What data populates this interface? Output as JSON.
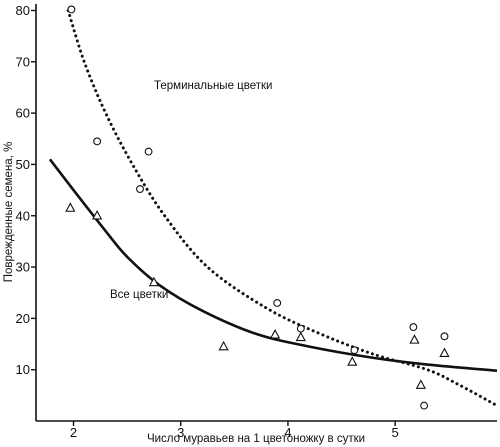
{
  "chart_data": {
    "type": "scatter",
    "xlabel": "Число муравьев на 1 цветоножку в сутки",
    "ylabel": "Поврежденные семена, %",
    "xlim": [
      1.65,
      5.95
    ],
    "ylim": [
      0,
      80
    ],
    "x_ticks": [
      "2",
      "3",
      "4",
      "5"
    ],
    "y_ticks": [
      "10",
      "20",
      "30",
      "40",
      "50",
      "60",
      "70",
      "80"
    ],
    "grid": false,
    "legend": "none",
    "colors": {
      "ink": "#111111",
      "background": "#ffffff"
    },
    "series": [
      {
        "name": "Терминальные цветки",
        "marker": "circle",
        "line_style": "dotted",
        "points": [
          [
            1.98,
            80.2
          ],
          [
            2.22,
            54.5
          ],
          [
            2.62,
            45.2
          ],
          [
            2.7,
            52.5
          ],
          [
            3.9,
            23.0
          ],
          [
            4.12,
            18.0
          ],
          [
            4.62,
            13.8
          ],
          [
            5.17,
            18.3
          ],
          [
            5.27,
            3.0
          ],
          [
            5.46,
            16.5
          ]
        ],
        "curve": [
          [
            1.95,
            80
          ],
          [
            2.1,
            70
          ],
          [
            2.3,
            60
          ],
          [
            2.55,
            50
          ],
          [
            2.85,
            40
          ],
          [
            3.25,
            30
          ],
          [
            3.8,
            22
          ],
          [
            4.3,
            17
          ],
          [
            4.8,
            13
          ],
          [
            5.3,
            10
          ],
          [
            5.6,
            7
          ],
          [
            5.95,
            3
          ]
        ]
      },
      {
        "name": "Все цветки",
        "marker": "triangle",
        "line_style": "solid",
        "points": [
          [
            1.97,
            41.5
          ],
          [
            2.22,
            40.0
          ],
          [
            2.75,
            27.0
          ],
          [
            3.4,
            14.5
          ],
          [
            3.88,
            16.8
          ],
          [
            4.12,
            16.3
          ],
          [
            4.6,
            11.5
          ],
          [
            5.18,
            15.8
          ],
          [
            5.24,
            7.0
          ],
          [
            5.46,
            13.2
          ]
        ],
        "curve": [
          [
            1.78,
            51
          ],
          [
            2.0,
            45
          ],
          [
            2.3,
            37
          ],
          [
            2.5,
            32
          ],
          [
            2.8,
            26.5
          ],
          [
            3.2,
            21.5
          ],
          [
            3.7,
            17
          ],
          [
            4.2,
            14.5
          ],
          [
            4.8,
            12.3
          ],
          [
            5.3,
            11
          ],
          [
            5.95,
            9.8
          ]
        ]
      }
    ]
  }
}
